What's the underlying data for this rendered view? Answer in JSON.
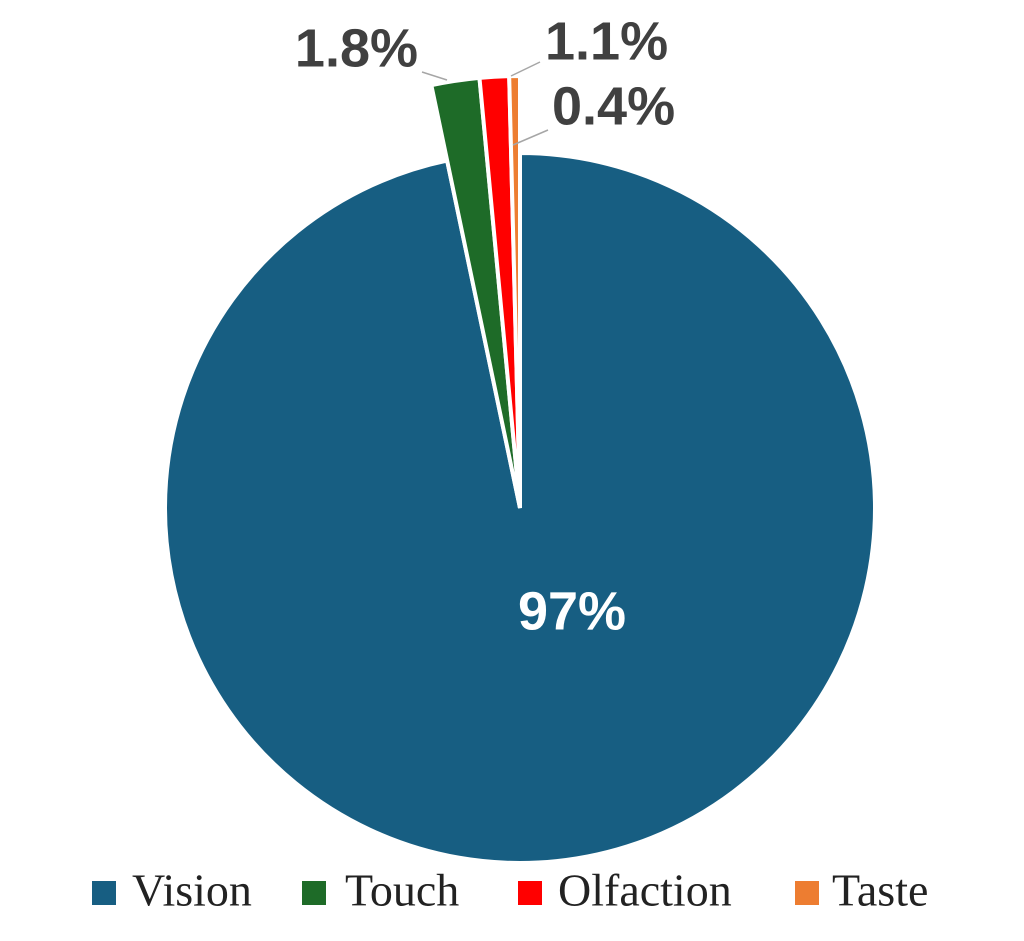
{
  "chart_data": {
    "type": "pie",
    "categories": [
      "Vision",
      "Touch",
      "Olfaction",
      "Taste"
    ],
    "values": [
      97,
      1.8,
      1.1,
      0.4
    ],
    "value_labels": [
      "97%",
      "1.8%",
      "1.1%",
      "0.4%"
    ],
    "colors": [
      "#175e82",
      "#1e6b28",
      "#ff0000",
      "#ed7d31"
    ],
    "legend": "bottom"
  }
}
